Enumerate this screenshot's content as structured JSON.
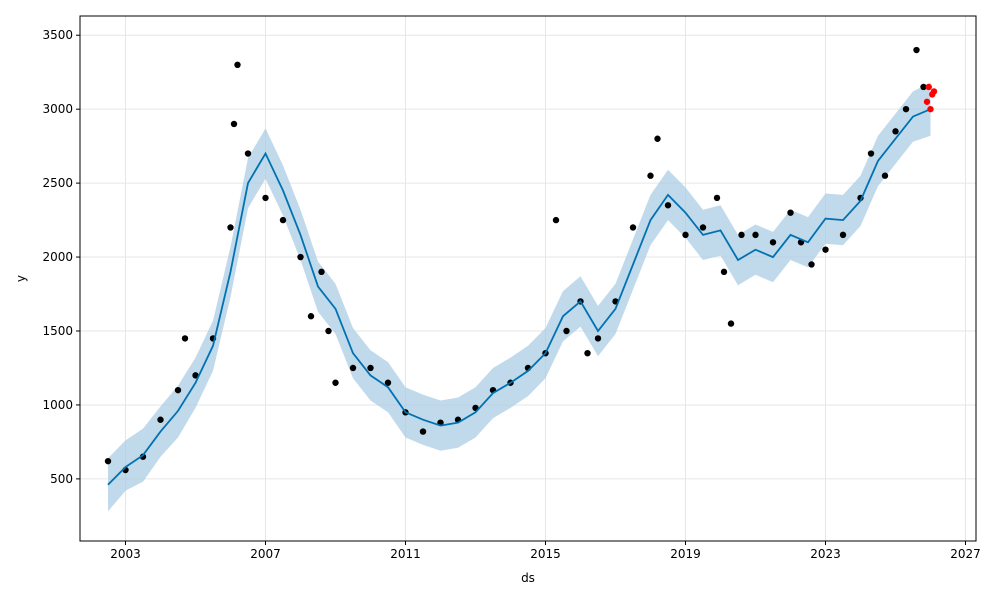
{
  "chart_data": {
    "type": "line",
    "title": "",
    "xlabel": "ds",
    "ylabel": "y",
    "xlim": [
      2001.7,
      2027.3
    ],
    "ylim": [
      80,
      3630
    ],
    "x_ticks": [
      2003,
      2007,
      2011,
      2015,
      2019,
      2023,
      2027
    ],
    "x_tick_labels": [
      "2003",
      "2007",
      "2011",
      "2015",
      "2019",
      "2023",
      "2027"
    ],
    "y_ticks": [
      500,
      1000,
      1500,
      2000,
      2500,
      3000,
      3500
    ],
    "y_tick_labels": [
      "500",
      "1000",
      "1500",
      "2000",
      "2500",
      "3000",
      "3500"
    ],
    "grid": true,
    "colors": {
      "forecast": "#0072B2",
      "interval": "#A6CBE3",
      "observed": "#000000",
      "recent": "#FF0000"
    },
    "series": [
      {
        "kind": "forecast",
        "x": [
          2002.5,
          2003.0,
          2003.5,
          2004.0,
          2004.5,
          2005.0,
          2005.5,
          2006.0,
          2006.5,
          2007.0,
          2007.5,
          2008.0,
          2008.5,
          2009.0,
          2009.5,
          2010.0,
          2010.5,
          2011.0,
          2011.5,
          2012.0,
          2012.5,
          2013.0,
          2013.5,
          2014.0,
          2014.5,
          2015.0,
          2015.5,
          2016.0,
          2016.5,
          2017.0,
          2017.5,
          2018.0,
          2018.5,
          2019.0,
          2019.5,
          2020.0,
          2020.5,
          2021.0,
          2021.5,
          2022.0,
          2022.5,
          2023.0,
          2023.5,
          2024.0,
          2024.5,
          2025.0,
          2025.5,
          2026.0
        ],
        "y": [
          460,
          580,
          660,
          820,
          960,
          1150,
          1400,
          1900,
          2500,
          2700,
          2450,
          2150,
          1800,
          1650,
          1350,
          1200,
          1120,
          950,
          900,
          860,
          880,
          950,
          1080,
          1150,
          1230,
          1350,
          1600,
          1700,
          1500,
          1650,
          1950,
          2250,
          2420,
          2300,
          2150,
          2180,
          1980,
          2050,
          2000,
          2150,
          2100,
          2260,
          2250,
          2380,
          2650,
          2800,
          2950,
          3000
        ]
      },
      {
        "kind": "interval",
        "x": [
          2002.5,
          2003.0,
          2003.5,
          2004.0,
          2004.5,
          2005.0,
          2005.5,
          2006.0,
          2006.5,
          2007.0,
          2007.5,
          2008.0,
          2008.5,
          2009.0,
          2009.5,
          2010.0,
          2010.5,
          2011.0,
          2011.5,
          2012.0,
          2012.5,
          2013.0,
          2013.5,
          2014.0,
          2014.5,
          2015.0,
          2015.5,
          2016.0,
          2016.5,
          2017.0,
          2017.5,
          2018.0,
          2018.5,
          2019.0,
          2019.5,
          2020.0,
          2020.5,
          2021.0,
          2021.5,
          2022.0,
          2022.5,
          2023.0,
          2023.5,
          2024.0,
          2024.5,
          2025.0,
          2025.5,
          2026.0
        ],
        "lower": [
          280,
          420,
          480,
          650,
          780,
          980,
          1230,
          1730,
          2330,
          2530,
          2280,
          1980,
          1630,
          1480,
          1180,
          1030,
          950,
          780,
          730,
          690,
          710,
          780,
          910,
          980,
          1060,
          1180,
          1430,
          1530,
          1330,
          1480,
          1780,
          2080,
          2250,
          2130,
          1980,
          2010,
          1810,
          1880,
          1830,
          1980,
          1930,
          2090,
          2080,
          2210,
          2480,
          2630,
          2780,
          2820
        ],
        "upper": [
          640,
          760,
          840,
          990,
          1130,
          1320,
          1570,
          2070,
          2670,
          2870,
          2620,
          2320,
          1970,
          1820,
          1520,
          1370,
          1290,
          1120,
          1070,
          1030,
          1050,
          1120,
          1250,
          1320,
          1400,
          1520,
          1770,
          1870,
          1670,
          1820,
          2120,
          2420,
          2590,
          2470,
          2320,
          2350,
          2150,
          2220,
          2170,
          2320,
          2270,
          2430,
          2420,
          2550,
          2820,
          2970,
          3120,
          3180
        ]
      },
      {
        "kind": "observed",
        "x": [
          2002.5,
          2003.0,
          2003.5,
          2004.0,
          2004.5,
          2004.7,
          2005.0,
          2005.5,
          2006.0,
          2006.1,
          2006.2,
          2006.5,
          2007.0,
          2007.5,
          2008.0,
          2008.3,
          2008.6,
          2008.8,
          2009.0,
          2009.5,
          2010.0,
          2010.5,
          2011.0,
          2011.5,
          2012.0,
          2012.5,
          2013.0,
          2013.5,
          2014.0,
          2014.5,
          2015.0,
          2015.3,
          2015.6,
          2016.0,
          2016.2,
          2016.5,
          2017.0,
          2017.5,
          2018.0,
          2018.2,
          2018.5,
          2019.0,
          2019.5,
          2019.9,
          2020.1,
          2020.3,
          2020.6,
          2021.0,
          2021.5,
          2022.0,
          2022.3,
          2022.6,
          2023.0,
          2023.5,
          2024.0,
          2024.3,
          2024.7,
          2025.0,
          2025.3,
          2025.6,
          2025.8
        ],
        "y": [
          620,
          560,
          650,
          900,
          1100,
          1450,
          1200,
          1450,
          2200,
          2900,
          3300,
          2700,
          2400,
          2250,
          2000,
          1600,
          1900,
          1500,
          1150,
          1250,
          1250,
          1150,
          950,
          820,
          880,
          900,
          980,
          1100,
          1150,
          1250,
          1350,
          2250,
          1500,
          1700,
          1350,
          1450,
          1700,
          2200,
          2550,
          2800,
          2350,
          2150,
          2200,
          2400,
          1900,
          1550,
          2150,
          2150,
          2100,
          2300,
          2100,
          1950,
          2050,
          2150,
          2400,
          2700,
          2550,
          2850,
          3000,
          3400,
          3150
        ]
      },
      {
        "kind": "recent",
        "x": [
          2025.9,
          2025.95,
          2026.0,
          2026.05,
          2026.1
        ],
        "y": [
          3050,
          3150,
          3000,
          3100,
          3120
        ]
      }
    ]
  }
}
